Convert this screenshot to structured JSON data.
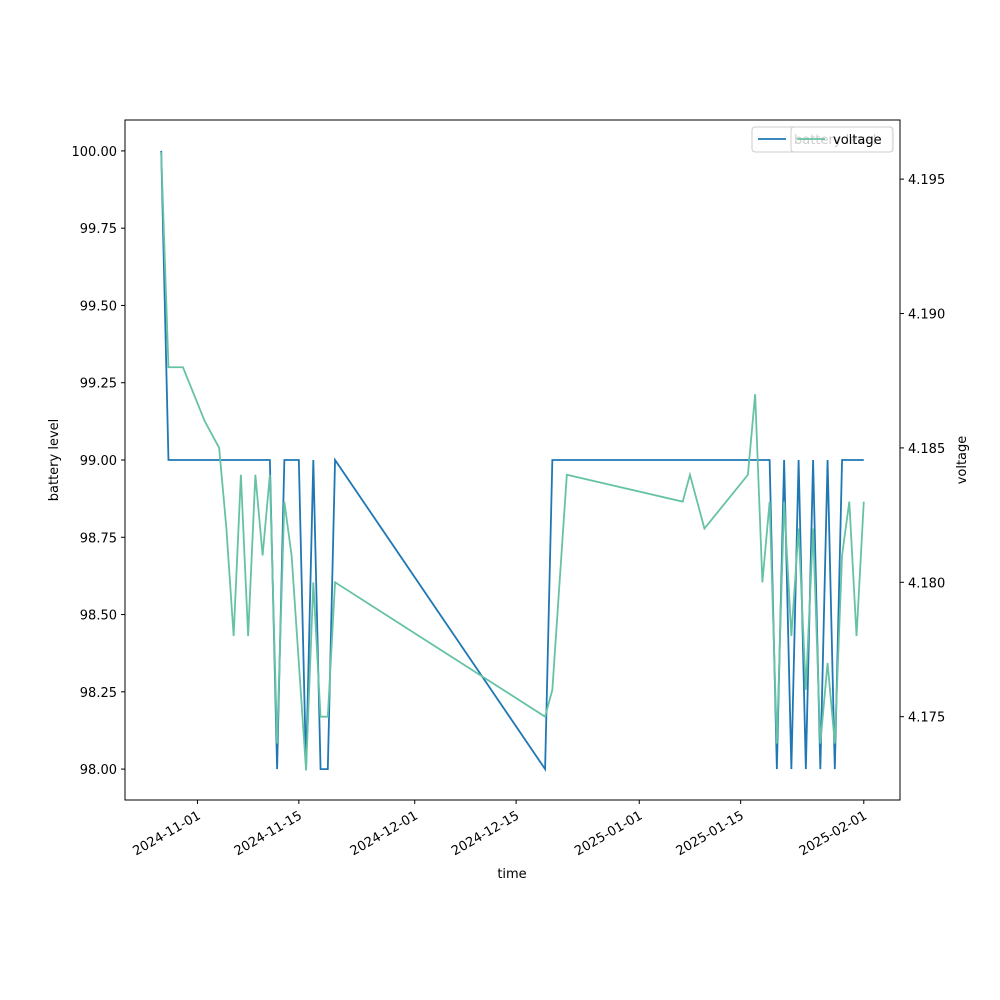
{
  "chart_data": {
    "type": "line",
    "xlabel": "time",
    "ylabel": "battery level",
    "y2label": "voltage",
    "x": [
      "2024-10-27",
      "2024-10-28",
      "2024-10-30",
      "2024-11-02",
      "2024-11-04",
      "2024-11-05",
      "2024-11-06",
      "2024-11-07",
      "2024-11-08",
      "2024-11-09",
      "2024-11-10",
      "2024-11-11",
      "2024-11-12",
      "2024-11-13",
      "2024-11-14",
      "2024-11-15",
      "2024-11-16",
      "2024-11-17",
      "2024-11-18",
      "2024-11-19",
      "2024-11-20",
      "2024-12-19",
      "2024-12-20",
      "2024-12-22",
      "2025-01-07",
      "2025-01-08",
      "2025-01-10",
      "2025-01-16",
      "2025-01-17",
      "2025-01-18",
      "2025-01-19",
      "2025-01-20",
      "2025-01-21",
      "2025-01-22",
      "2025-01-23",
      "2025-01-24",
      "2025-01-25",
      "2025-01-26",
      "2025-01-27",
      "2025-01-28",
      "2025-01-29",
      "2025-01-30",
      "2025-01-31",
      "2025-02-01"
    ],
    "series": [
      {
        "name": "battery level",
        "color": "#1f77b4",
        "axis": "y",
        "values": [
          100,
          99,
          99,
          99,
          99,
          99,
          99,
          99,
          99,
          99,
          99,
          99,
          98,
          99,
          99,
          99,
          98,
          99,
          98,
          98,
          99,
          98,
          99,
          99,
          99,
          99,
          99,
          99,
          99,
          99,
          99,
          98,
          99,
          98,
          99,
          98,
          99,
          98,
          99,
          98,
          99,
          99,
          99,
          99
        ]
      },
      {
        "name": "voltage",
        "color": "#66c2a5",
        "axis": "y2",
        "values": [
          4.196,
          4.188,
          4.188,
          4.186,
          4.185,
          4.182,
          4.178,
          4.184,
          4.178,
          4.184,
          4.181,
          4.184,
          4.174,
          4.183,
          4.181,
          4.177,
          4.173,
          4.18,
          4.175,
          4.175,
          4.18,
          4.175,
          4.176,
          4.184,
          4.183,
          4.184,
          4.182,
          4.184,
          4.187,
          4.18,
          4.183,
          4.174,
          4.183,
          4.178,
          4.182,
          4.176,
          4.182,
          4.174,
          4.177,
          4.174,
          4.181,
          4.183,
          4.178,
          4.183
        ]
      }
    ],
    "xlim": [
      "2024-10-22",
      "2025-02-06"
    ],
    "xticks": [
      "2024-11-01",
      "2024-11-15",
      "2024-12-01",
      "2024-12-15",
      "2025-01-01",
      "2025-01-15",
      "2025-02-01"
    ],
    "ylim": [
      97.9,
      100.1
    ],
    "yticks": [
      {
        "value": 98,
        "label": "98.00"
      },
      98.25,
      {
        "value": 98.5,
        "label": "98.50"
      },
      98.75,
      {
        "value": 99,
        "label": "99.00"
      },
      99.25,
      {
        "value": 99.5,
        "label": "99.50"
      },
      99.75,
      {
        "value": 100,
        "label": "100.00"
      }
    ],
    "y2lim": [
      4.1719,
      4.1972
    ],
    "y2ticks": [
      4.175,
      {
        "value": 4.18,
        "label": "4.180"
      },
      4.185,
      {
        "value": 4.19,
        "label": "4.190"
      },
      4.195
    ],
    "legend": "upper right"
  }
}
